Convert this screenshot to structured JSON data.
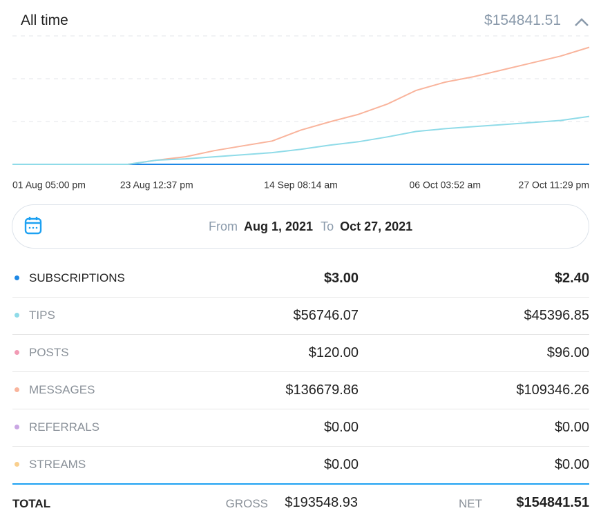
{
  "header": {
    "title": "All time",
    "total": "$154841.51"
  },
  "chart_data": {
    "type": "line",
    "categories": [
      "01 Aug 05:00 pm",
      null,
      null,
      null,
      null,
      "23 Aug 12:37 pm",
      null,
      null,
      null,
      null,
      "14 Sep 08:14 am",
      null,
      null,
      null,
      null,
      "06 Oct 03:52 am",
      null,
      null,
      null,
      null,
      "27 Oct 11:29 pm"
    ],
    "series": [
      {
        "color": "#f9b49c",
        "values": [
          0,
          0,
          0,
          0,
          0,
          4800,
          8800,
          16000,
          21600,
          27200,
          40000,
          49600,
          58400,
          70400,
          86400,
          96000,
          102400,
          110400,
          118400,
          126400,
          136700
        ]
      },
      {
        "color": "#8fdbe8",
        "values": [
          0,
          0,
          0,
          0,
          0,
          4800,
          6400,
          8800,
          11200,
          13600,
          17600,
          22400,
          26400,
          32000,
          38400,
          41600,
          44000,
          46400,
          48800,
          51200,
          56000
        ]
      }
    ],
    "ylim": [
      0,
      150000
    ],
    "yticks": [
      0,
      50000,
      100000,
      150000
    ],
    "grid": true
  },
  "date_range": {
    "from_label": "From",
    "from": "Aug 1, 2021",
    "to_label": "To",
    "to": "Oct 27, 2021"
  },
  "table": {
    "rows": [
      {
        "label": "SUBSCRIPTIONS",
        "color": "#1e88e5",
        "gross": "$3.00",
        "net": "$2.40"
      },
      {
        "label": "TIPS",
        "color": "#8fdbe8",
        "gross": "$56746.07",
        "net": "$45396.85"
      },
      {
        "label": "POSTS",
        "color": "#f29bb5",
        "gross": "$120.00",
        "net": "$96.00"
      },
      {
        "label": "MESSAGES",
        "color": "#f9b49c",
        "gross": "$136679.86",
        "net": "$109346.26"
      },
      {
        "label": "REFERRALS",
        "color": "#c9a6e3",
        "gross": "$0.00",
        "net": "$0.00"
      },
      {
        "label": "STREAMS",
        "color": "#f9cf8d",
        "gross": "$0.00",
        "net": "$0.00"
      }
    ],
    "total": {
      "label": "TOTAL",
      "gross_label": "GROSS",
      "gross": "$193548.93",
      "net_label": "NET",
      "net": "$154841.51"
    }
  }
}
